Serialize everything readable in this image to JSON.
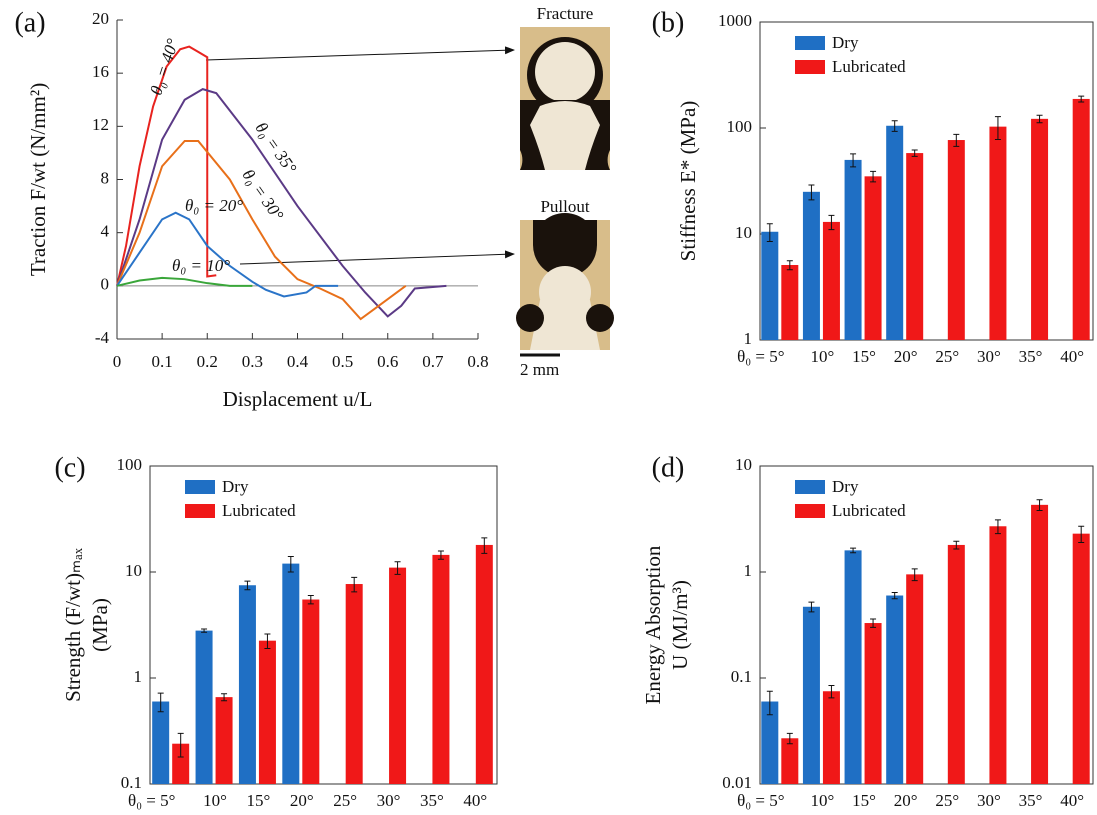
{
  "chart_data": [
    {
      "type": "line",
      "panel": "(a)",
      "xlabel": "Displacement u/L",
      "ylabel": "Traction F/wt (N/mm²)",
      "xlim": [
        0,
        0.8
      ],
      "ylim": [
        -4,
        20
      ],
      "xticks": [
        0,
        0.1,
        0.2,
        0.3,
        0.4,
        0.5,
        0.6,
        0.7,
        0.8
      ],
      "yticks": [
        -4,
        0,
        4,
        8,
        12,
        16,
        20
      ],
      "annotations": [
        "Fracture",
        "Pullout",
        "2 mm"
      ],
      "series": [
        {
          "name": "θ₀ = 40°",
          "color": "#e8231f",
          "x": [
            0,
            0.02,
            0.05,
            0.08,
            0.11,
            0.14,
            0.16,
            0.18,
            0.2,
            0.2,
            0.22
          ],
          "values": [
            0,
            3,
            9,
            13.5,
            16.5,
            17.8,
            18,
            17.6,
            17.2,
            0.7,
            0.8
          ]
        },
        {
          "name": "θ₀ = 35°",
          "color": "#5b3a86",
          "x": [
            0,
            0.05,
            0.1,
            0.15,
            0.19,
            0.22,
            0.3,
            0.4,
            0.5,
            0.55,
            0.6,
            0.63,
            0.66,
            0.73
          ],
          "values": [
            0,
            5,
            11,
            14,
            14.8,
            14.5,
            11,
            6,
            1.5,
            -0.5,
            -2.3,
            -1.5,
            -0.2,
            0
          ]
        },
        {
          "name": "θ₀ = 30°",
          "color": "#e8701a",
          "x": [
            0,
            0.05,
            0.1,
            0.15,
            0.18,
            0.25,
            0.3,
            0.35,
            0.4,
            0.45,
            0.5,
            0.54,
            0.58,
            0.64
          ],
          "values": [
            0,
            4,
            9,
            10.9,
            10.9,
            8,
            5,
            2.2,
            0.5,
            -0.2,
            -1,
            -2.5,
            -1.5,
            0
          ]
        },
        {
          "name": "θ₀ = 20°",
          "color": "#2a74c8",
          "x": [
            0,
            0.05,
            0.1,
            0.13,
            0.16,
            0.2,
            0.25,
            0.3,
            0.33,
            0.37,
            0.42,
            0.44,
            0.49
          ],
          "values": [
            0,
            2.5,
            5,
            5.5,
            5,
            3,
            1.5,
            0.3,
            -0.3,
            -0.8,
            -0.5,
            0,
            0
          ]
        },
        {
          "name": "θ₀ = 10°",
          "color": "#3aa63a",
          "x": [
            0,
            0.05,
            0.1,
            0.15,
            0.2,
            0.25,
            0.3
          ],
          "values": [
            0,
            0.4,
            0.6,
            0.5,
            0.2,
            0,
            0
          ]
        }
      ]
    },
    {
      "type": "bar",
      "panel": "(b)",
      "ylabel": "Stiffness E* (MPa)",
      "log_scale": true,
      "ylim": [
        1,
        1000
      ],
      "yticks": [
        1,
        10,
        100,
        1000
      ],
      "categories": [
        "θ₀ = 5°",
        "10°",
        "15°",
        "20°",
        "25°",
        "30°",
        "35°",
        "40°"
      ],
      "series": [
        {
          "name": "Dry",
          "color": "#1f6fc4",
          "values": [
            10.5,
            25,
            50,
            105,
            null,
            null,
            null,
            null
          ],
          "errors": [
            2,
            4,
            7,
            12,
            null,
            null,
            null,
            null
          ]
        },
        {
          "name": "Lubricated",
          "color": "#f01818",
          "values": [
            5.1,
            13,
            35,
            58,
            77,
            103,
            122,
            188
          ],
          "errors": [
            0.5,
            2,
            4,
            4,
            10,
            25,
            10,
            12
          ]
        }
      ]
    },
    {
      "type": "bar",
      "panel": "(c)",
      "ylabel": [
        "Strength (F/wt)ₘₐₓ",
        "(MPa)"
      ],
      "log_scale": true,
      "ylim": [
        0.1,
        100
      ],
      "yticks": [
        0.1,
        1,
        10,
        100
      ],
      "categories": [
        "θ₀ = 5°",
        "10°",
        "15°",
        "20°",
        "25°",
        "30°",
        "35°",
        "40°"
      ],
      "series": [
        {
          "name": "Dry",
          "color": "#1f6fc4",
          "values": [
            0.6,
            2.8,
            7.5,
            12,
            null,
            null,
            null,
            null
          ],
          "errors": [
            0.12,
            0.1,
            0.7,
            2,
            null,
            null,
            null,
            null
          ]
        },
        {
          "name": "Lubricated",
          "color": "#f01818",
          "values": [
            0.24,
            0.66,
            2.25,
            5.5,
            7.7,
            11,
            14.5,
            18
          ],
          "errors": [
            0.06,
            0.05,
            0.35,
            0.5,
            1.2,
            1.5,
            1.3,
            3
          ]
        }
      ]
    },
    {
      "type": "bar",
      "panel": "(d)",
      "ylabel": [
        "Energy Absorption",
        "U (MJ/m³)"
      ],
      "log_scale": true,
      "ylim": [
        0.01,
        10
      ],
      "yticks": [
        0.01,
        0.1,
        1,
        10
      ],
      "categories": [
        "θ₀ = 5°",
        "10°",
        "15°",
        "20°",
        "25°",
        "30°",
        "35°",
        "40°"
      ],
      "series": [
        {
          "name": "Dry",
          "color": "#1f6fc4",
          "values": [
            0.06,
            0.47,
            1.6,
            0.6,
            null,
            null,
            null,
            null
          ],
          "errors": [
            0.015,
            0.05,
            0.08,
            0.04,
            null,
            null,
            null,
            null
          ]
        },
        {
          "name": "Lubricated",
          "color": "#f01818",
          "values": [
            0.027,
            0.075,
            0.33,
            0.95,
            1.8,
            2.7,
            4.3,
            2.3
          ],
          "errors": [
            0.003,
            0.01,
            0.03,
            0.12,
            0.15,
            0.4,
            0.5,
            0.4
          ]
        }
      ]
    }
  ]
}
